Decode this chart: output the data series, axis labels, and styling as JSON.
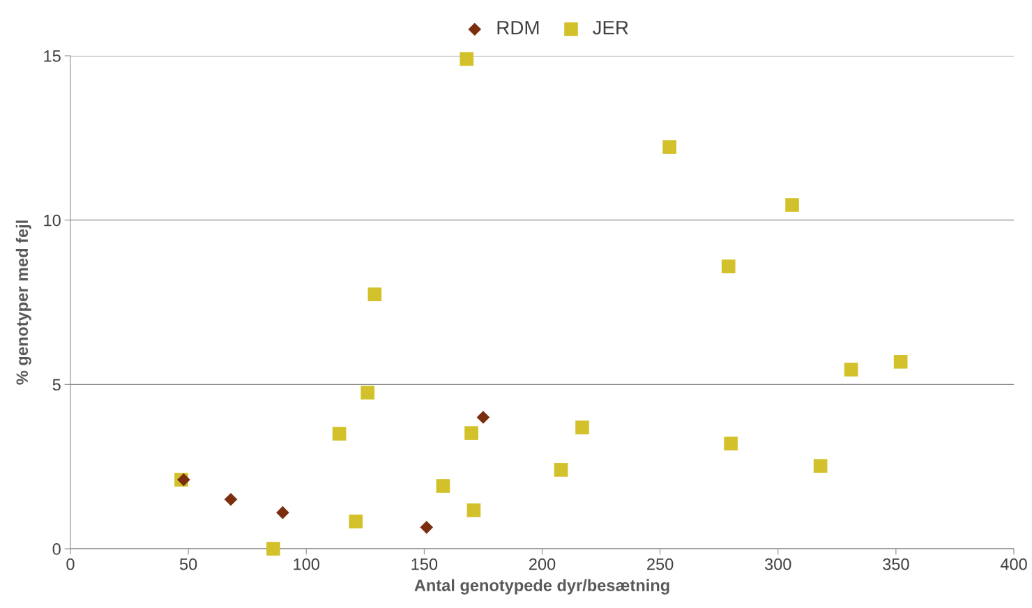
{
  "chart_data": {
    "type": "scatter",
    "xlabel": "Antal genotypede dyr/besætning",
    "ylabel": "% genotyper med fejl",
    "series": [
      {
        "name": "RDM",
        "color": "#7a2e0e",
        "marker": "diamond",
        "x": [
          48,
          68,
          90,
          151,
          175
        ],
        "values": [
          2.1,
          1.5,
          1.1,
          0.65,
          4.0
        ]
      },
      {
        "name": "JER",
        "color": "#d2c12a",
        "marker": "square",
        "x": [
          47,
          86,
          114,
          121,
          126,
          129,
          158,
          168,
          170,
          171,
          208,
          217,
          254,
          279,
          280,
          306,
          318,
          331,
          352
        ],
        "values": [
          2.1,
          0,
          3.5,
          0.83,
          4.75,
          7.74,
          1.91,
          14.9,
          3.52,
          1.17,
          2.4,
          3.69,
          12.22,
          8.59,
          3.2,
          10.46,
          2.52,
          5.45,
          5.69
        ]
      }
    ],
    "xlim": [
      0,
      400
    ],
    "xticks": [
      0,
      50,
      100,
      150,
      200,
      250,
      300,
      350,
      400
    ],
    "ylim": [
      0,
      15
    ],
    "yticks": [
      0,
      5,
      10,
      15
    ],
    "grid": "y",
    "legend": "top"
  }
}
